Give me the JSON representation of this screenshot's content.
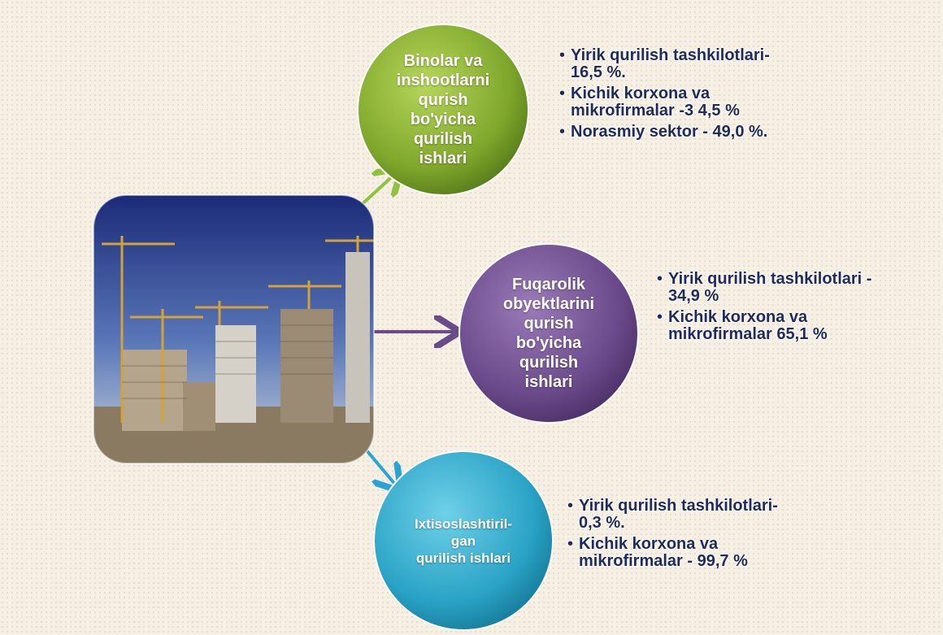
{
  "nodes": [
    {
      "label": [
        "Binolar va",
        "inshootlarni",
        "qurish",
        "bo'yicha",
        "qurilish",
        "ishlari"
      ],
      "bullets": [
        [
          "Yirik qurilish tashkilotlari-",
          "16,5 %."
        ],
        [
          "Kichik korxona va",
          "mikrofirmalar -3 4,5 %"
        ],
        [
          "Norasmiy sektor - 49,0 %."
        ]
      ]
    },
    {
      "label": [
        "Fuqarolik",
        "obyektlarini",
        "qurish",
        "bo'yicha",
        "qurilish",
        "ishlari"
      ],
      "bullets": [
        [
          "Yirik qurilish tashkilotlari -",
          "34,9 %"
        ],
        [
          "Kichik korxona va",
          "mikrofirmalar 65,1 %"
        ]
      ]
    },
    {
      "label": [
        "Ixtisoslashtiril-",
        "gan",
        "qurilish ishlari"
      ],
      "bullets": [
        [
          "Yirik qurilish tashkilotlari-",
          "0,3 %."
        ],
        [
          "Kichik korxona va",
          "mikrofirmalar - 99,7 %"
        ]
      ]
    }
  ]
}
